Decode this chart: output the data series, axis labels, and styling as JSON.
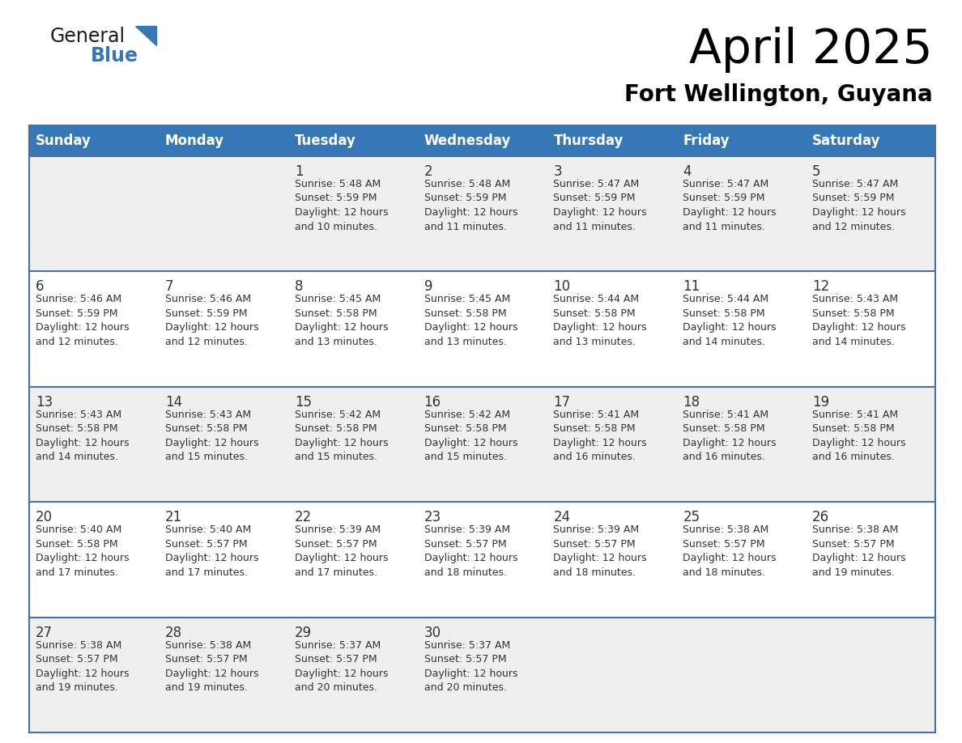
{
  "title": "April 2025",
  "subtitle": "Fort Wellington, Guyana",
  "header_bg_color": "#3578b5",
  "header_text_color": "#ffffff",
  "cell_bg_light": "#efefef",
  "cell_bg_white": "#ffffff",
  "row_line_color": "#4472a8",
  "text_color": "#333333",
  "day_number_color": "#333333",
  "logo_black": "#1a1a1a",
  "logo_blue": "#3578b5",
  "day_headers": [
    "Sunday",
    "Monday",
    "Tuesday",
    "Wednesday",
    "Thursday",
    "Friday",
    "Saturday"
  ],
  "weeks": [
    [
      {
        "day": "",
        "info": ""
      },
      {
        "day": "",
        "info": ""
      },
      {
        "day": "1",
        "info": "Sunrise: 5:48 AM\nSunset: 5:59 PM\nDaylight: 12 hours\nand 10 minutes."
      },
      {
        "day": "2",
        "info": "Sunrise: 5:48 AM\nSunset: 5:59 PM\nDaylight: 12 hours\nand 11 minutes."
      },
      {
        "day": "3",
        "info": "Sunrise: 5:47 AM\nSunset: 5:59 PM\nDaylight: 12 hours\nand 11 minutes."
      },
      {
        "day": "4",
        "info": "Sunrise: 5:47 AM\nSunset: 5:59 PM\nDaylight: 12 hours\nand 11 minutes."
      },
      {
        "day": "5",
        "info": "Sunrise: 5:47 AM\nSunset: 5:59 PM\nDaylight: 12 hours\nand 12 minutes."
      }
    ],
    [
      {
        "day": "6",
        "info": "Sunrise: 5:46 AM\nSunset: 5:59 PM\nDaylight: 12 hours\nand 12 minutes."
      },
      {
        "day": "7",
        "info": "Sunrise: 5:46 AM\nSunset: 5:59 PM\nDaylight: 12 hours\nand 12 minutes."
      },
      {
        "day": "8",
        "info": "Sunrise: 5:45 AM\nSunset: 5:58 PM\nDaylight: 12 hours\nand 13 minutes."
      },
      {
        "day": "9",
        "info": "Sunrise: 5:45 AM\nSunset: 5:58 PM\nDaylight: 12 hours\nand 13 minutes."
      },
      {
        "day": "10",
        "info": "Sunrise: 5:44 AM\nSunset: 5:58 PM\nDaylight: 12 hours\nand 13 minutes."
      },
      {
        "day": "11",
        "info": "Sunrise: 5:44 AM\nSunset: 5:58 PM\nDaylight: 12 hours\nand 14 minutes."
      },
      {
        "day": "12",
        "info": "Sunrise: 5:43 AM\nSunset: 5:58 PM\nDaylight: 12 hours\nand 14 minutes."
      }
    ],
    [
      {
        "day": "13",
        "info": "Sunrise: 5:43 AM\nSunset: 5:58 PM\nDaylight: 12 hours\nand 14 minutes."
      },
      {
        "day": "14",
        "info": "Sunrise: 5:43 AM\nSunset: 5:58 PM\nDaylight: 12 hours\nand 15 minutes."
      },
      {
        "day": "15",
        "info": "Sunrise: 5:42 AM\nSunset: 5:58 PM\nDaylight: 12 hours\nand 15 minutes."
      },
      {
        "day": "16",
        "info": "Sunrise: 5:42 AM\nSunset: 5:58 PM\nDaylight: 12 hours\nand 15 minutes."
      },
      {
        "day": "17",
        "info": "Sunrise: 5:41 AM\nSunset: 5:58 PM\nDaylight: 12 hours\nand 16 minutes."
      },
      {
        "day": "18",
        "info": "Sunrise: 5:41 AM\nSunset: 5:58 PM\nDaylight: 12 hours\nand 16 minutes."
      },
      {
        "day": "19",
        "info": "Sunrise: 5:41 AM\nSunset: 5:58 PM\nDaylight: 12 hours\nand 16 minutes."
      }
    ],
    [
      {
        "day": "20",
        "info": "Sunrise: 5:40 AM\nSunset: 5:58 PM\nDaylight: 12 hours\nand 17 minutes."
      },
      {
        "day": "21",
        "info": "Sunrise: 5:40 AM\nSunset: 5:57 PM\nDaylight: 12 hours\nand 17 minutes."
      },
      {
        "day": "22",
        "info": "Sunrise: 5:39 AM\nSunset: 5:57 PM\nDaylight: 12 hours\nand 17 minutes."
      },
      {
        "day": "23",
        "info": "Sunrise: 5:39 AM\nSunset: 5:57 PM\nDaylight: 12 hours\nand 18 minutes."
      },
      {
        "day": "24",
        "info": "Sunrise: 5:39 AM\nSunset: 5:57 PM\nDaylight: 12 hours\nand 18 minutes."
      },
      {
        "day": "25",
        "info": "Sunrise: 5:38 AM\nSunset: 5:57 PM\nDaylight: 12 hours\nand 18 minutes."
      },
      {
        "day": "26",
        "info": "Sunrise: 5:38 AM\nSunset: 5:57 PM\nDaylight: 12 hours\nand 19 minutes."
      }
    ],
    [
      {
        "day": "27",
        "info": "Sunrise: 5:38 AM\nSunset: 5:57 PM\nDaylight: 12 hours\nand 19 minutes."
      },
      {
        "day": "28",
        "info": "Sunrise: 5:38 AM\nSunset: 5:57 PM\nDaylight: 12 hours\nand 19 minutes."
      },
      {
        "day": "29",
        "info": "Sunrise: 5:37 AM\nSunset: 5:57 PM\nDaylight: 12 hours\nand 20 minutes."
      },
      {
        "day": "30",
        "info": "Sunrise: 5:37 AM\nSunset: 5:57 PM\nDaylight: 12 hours\nand 20 minutes."
      },
      {
        "day": "",
        "info": ""
      },
      {
        "day": "",
        "info": ""
      },
      {
        "day": "",
        "info": ""
      }
    ]
  ]
}
